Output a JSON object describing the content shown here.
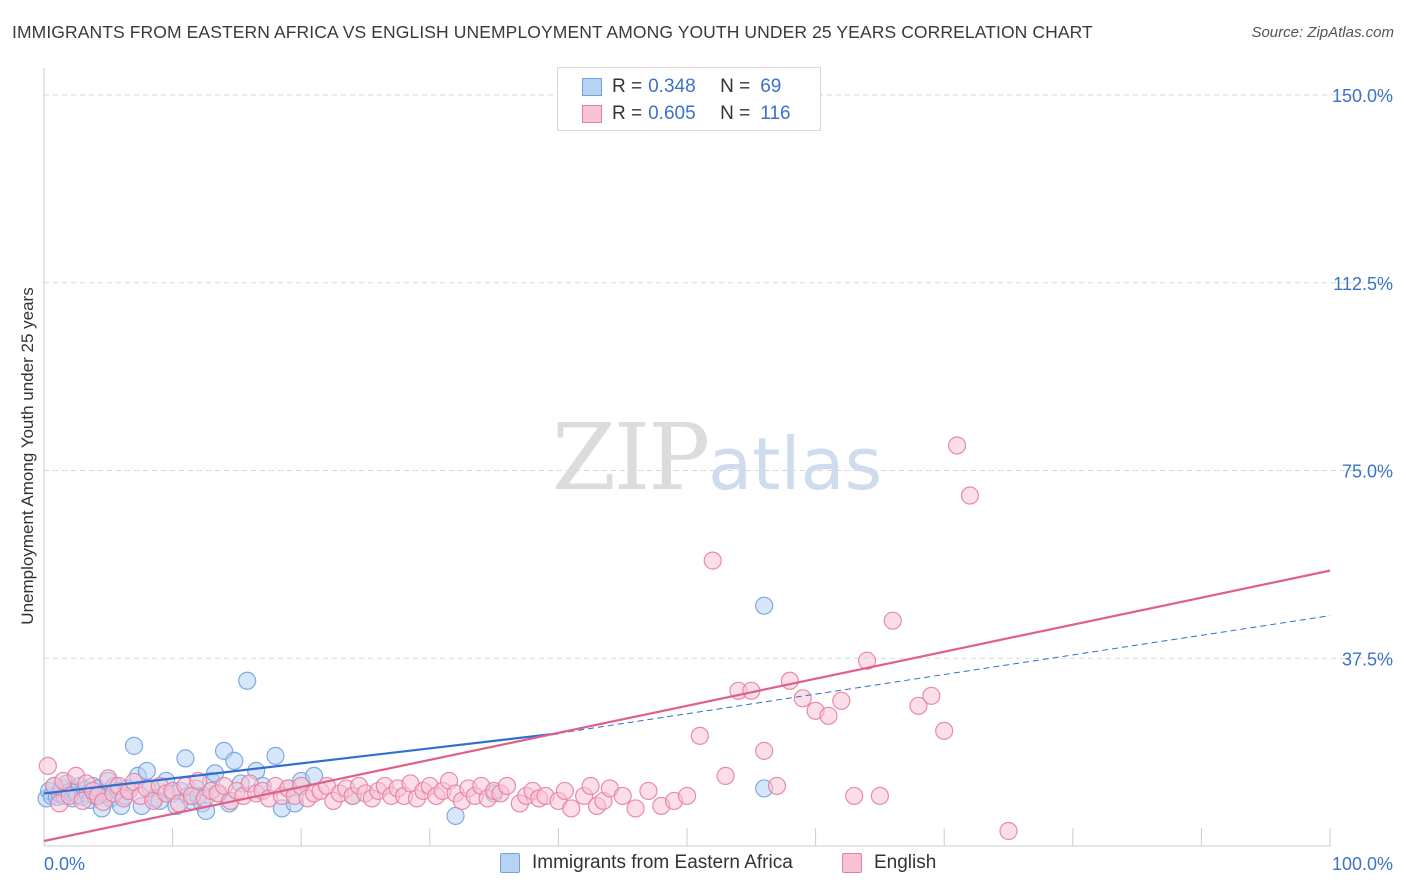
{
  "title": "IMMIGRANTS FROM EASTERN AFRICA VS ENGLISH UNEMPLOYMENT AMONG YOUTH UNDER 25 YEARS CORRELATION CHART",
  "source": "Source: ZipAtlas.com",
  "watermark": {
    "zip": "ZIP",
    "atlas": "atlas"
  },
  "legend": {
    "series1": {
      "r_label": "R = ",
      "r_value": "0.348",
      "n_label": "N = ",
      "n_value": "69"
    },
    "series2": {
      "r_label": "R = ",
      "r_value": "0.605",
      "n_label": "N = ",
      "n_value": "116"
    }
  },
  "colors": {
    "blue": "#6fa3e0",
    "blue_fill": "#b8d2f4",
    "pink": "#e57fa2",
    "pink_fill": "#f7c3d5",
    "blue_line": "#2f6fd0",
    "pink_line": "#e0608a",
    "axis_text": "#3b73c6"
  },
  "chart_data": {
    "type": "scatter",
    "title": "IMMIGRANTS FROM EASTERN AFRICA VS ENGLISH UNEMPLOYMENT AMONG YOUTH UNDER 25 YEARS CORRELATION CHART",
    "xlabel": "",
    "ylabel": "Unemployment Among Youth under 25 years",
    "xlim": [
      0,
      100
    ],
    "ylim": [
      0,
      150
    ],
    "x_tick_labels": [
      "0.0%",
      "100.0%"
    ],
    "y_ticks": [
      37.5,
      75.0,
      112.5,
      150.0
    ],
    "y_tick_labels": [
      "37.5%",
      "75.0%",
      "112.5%",
      "150.0%"
    ],
    "grid": true,
    "legend_position": "top-center",
    "series": [
      {
        "name": "Immigrants from Eastern Africa",
        "color": "blue",
        "r": 0.348,
        "n": 69,
        "trend": {
          "x0": 0,
          "y0": 10.5,
          "x1": 40,
          "y1": 22.5,
          "dashed_to_x": 100,
          "dashed_to_y": 46
        },
        "points": [
          [
            0.2,
            9.5
          ],
          [
            0.4,
            11
          ],
          [
            0.6,
            10
          ],
          [
            0.8,
            12
          ],
          [
            1,
            9.8
          ],
          [
            1.2,
            10.5
          ],
          [
            1.4,
            11.5
          ],
          [
            1.6,
            10
          ],
          [
            1.8,
            12.5
          ],
          [
            2,
            10.8
          ],
          [
            2.2,
            9.5
          ],
          [
            2.4,
            11
          ],
          [
            2.6,
            10.2
          ],
          [
            2.8,
            12
          ],
          [
            3,
            9.8
          ],
          [
            3.2,
            11.2
          ],
          [
            3.4,
            10.5
          ],
          [
            3.6,
            9.2
          ],
          [
            3.8,
            12
          ],
          [
            4,
            10
          ],
          [
            4.2,
            11.5
          ],
          [
            4.5,
            7.5
          ],
          [
            4.8,
            10.5
          ],
          [
            5,
            13
          ],
          [
            5.2,
            9.5
          ],
          [
            5.5,
            12
          ],
          [
            5.8,
            11
          ],
          [
            6,
            8
          ],
          [
            6.3,
            10
          ],
          [
            6.5,
            11.5
          ],
          [
            7,
            20
          ],
          [
            7.3,
            14
          ],
          [
            7.6,
            8
          ],
          [
            8,
            15
          ],
          [
            8.3,
            11.5
          ],
          [
            8.6,
            9.5
          ],
          [
            9,
            9
          ],
          [
            9.5,
            13
          ],
          [
            10,
            10.5
          ],
          [
            10.3,
            8
          ],
          [
            10.6,
            11
          ],
          [
            11,
            17.5
          ],
          [
            11.2,
            10
          ],
          [
            11.5,
            9
          ],
          [
            11.8,
            11.5
          ],
          [
            12,
            10
          ],
          [
            12.3,
            8.5
          ],
          [
            12.6,
            7
          ],
          [
            13,
            13
          ],
          [
            13.3,
            14.5
          ],
          [
            13.6,
            10.5
          ],
          [
            14,
            19
          ],
          [
            14.4,
            8.5
          ],
          [
            14.8,
            17
          ],
          [
            15.3,
            12.5
          ],
          [
            15.8,
            33
          ],
          [
            16.5,
            15
          ],
          [
            17,
            12
          ],
          [
            18,
            18
          ],
          [
            18.5,
            7.5
          ],
          [
            19,
            11.5
          ],
          [
            19.5,
            8.5
          ],
          [
            20,
            13
          ],
          [
            21,
            14
          ],
          [
            24,
            10
          ],
          [
            32,
            6
          ],
          [
            35,
            10.5
          ],
          [
            56,
            11.5
          ],
          [
            56,
            48
          ]
        ]
      },
      {
        "name": "English",
        "color": "pink",
        "r": 0.605,
        "n": 116,
        "trend": {
          "x0": 0,
          "y0": 1,
          "x1": 100,
          "y1": 55
        },
        "points": [
          [
            0.3,
            16
          ],
          [
            0.8,
            12
          ],
          [
            1.2,
            8.5
          ],
          [
            1.5,
            13
          ],
          [
            2,
            10
          ],
          [
            2.5,
            14
          ],
          [
            3,
            9
          ],
          [
            3.3,
            12.5
          ],
          [
            3.8,
            11
          ],
          [
            4.2,
            10
          ],
          [
            4.6,
            8.8
          ],
          [
            5,
            13.5
          ],
          [
            5.4,
            10.5
          ],
          [
            5.8,
            12
          ],
          [
            6.2,
            9.5
          ],
          [
            6.6,
            11
          ],
          [
            7,
            12.8
          ],
          [
            7.5,
            10
          ],
          [
            8,
            11.5
          ],
          [
            8.5,
            9
          ],
          [
            9,
            12
          ],
          [
            9.5,
            10.5
          ],
          [
            10,
            11
          ],
          [
            10.5,
            8.5
          ],
          [
            11,
            12
          ],
          [
            11.5,
            10
          ],
          [
            12,
            13
          ],
          [
            12.5,
            9.5
          ],
          [
            13,
            11
          ],
          [
            13.5,
            10.5
          ],
          [
            14,
            12
          ],
          [
            14.5,
            9
          ],
          [
            15,
            11
          ],
          [
            15.5,
            10
          ],
          [
            16,
            12.5
          ],
          [
            16.5,
            10.5
          ],
          [
            17,
            11
          ],
          [
            17.5,
            9.5
          ],
          [
            18,
            12
          ],
          [
            18.5,
            10
          ],
          [
            19,
            11.5
          ],
          [
            19.5,
            10
          ],
          [
            20,
            12
          ],
          [
            20.5,
            9.5
          ],
          [
            21,
            10.5
          ],
          [
            21.5,
            11
          ],
          [
            22,
            12
          ],
          [
            22.5,
            9
          ],
          [
            23,
            10.5
          ],
          [
            23.5,
            11.5
          ],
          [
            24,
            10
          ],
          [
            24.5,
            12
          ],
          [
            25,
            10.5
          ],
          [
            25.5,
            9.5
          ],
          [
            26,
            11
          ],
          [
            26.5,
            12
          ],
          [
            27,
            10
          ],
          [
            27.5,
            11.5
          ],
          [
            28,
            10
          ],
          [
            28.5,
            12.5
          ],
          [
            29,
            9.5
          ],
          [
            29.5,
            11
          ],
          [
            30,
            12
          ],
          [
            30.5,
            10
          ],
          [
            31,
            11
          ],
          [
            31.5,
            13
          ],
          [
            32,
            10.5
          ],
          [
            32.5,
            9
          ],
          [
            33,
            11.5
          ],
          [
            33.5,
            10
          ],
          [
            34,
            12
          ],
          [
            34.5,
            9.5
          ],
          [
            35,
            11
          ],
          [
            35.5,
            10.5
          ],
          [
            36,
            12
          ],
          [
            37,
            8.5
          ],
          [
            37.5,
            10
          ],
          [
            38,
            11
          ],
          [
            38.5,
            9.5
          ],
          [
            39,
            10
          ],
          [
            40,
            9
          ],
          [
            40.5,
            11
          ],
          [
            41,
            7.5
          ],
          [
            42,
            10
          ],
          [
            42.5,
            12
          ],
          [
            43,
            8
          ],
          [
            43.5,
            9
          ],
          [
            44,
            11.5
          ],
          [
            45,
            10
          ],
          [
            46,
            7.5
          ],
          [
            47,
            11
          ],
          [
            48,
            8
          ],
          [
            49,
            9
          ],
          [
            50,
            10
          ],
          [
            51,
            22
          ],
          [
            52,
            57
          ],
          [
            53,
            14
          ],
          [
            54,
            31
          ],
          [
            55,
            31
          ],
          [
            56,
            19
          ],
          [
            57,
            12
          ],
          [
            58,
            33
          ],
          [
            59,
            29.5
          ],
          [
            60,
            27
          ],
          [
            61,
            26
          ],
          [
            62,
            29
          ],
          [
            63,
            10
          ],
          [
            64,
            37
          ],
          [
            65,
            10
          ],
          [
            66,
            45
          ],
          [
            68,
            28
          ],
          [
            69,
            30
          ],
          [
            70,
            23
          ],
          [
            71,
            80
          ],
          [
            72,
            70
          ],
          [
            75,
            3
          ]
        ]
      }
    ]
  },
  "bottom_legend": {
    "series1": "Immigrants from Eastern Africa",
    "series2": "English"
  }
}
